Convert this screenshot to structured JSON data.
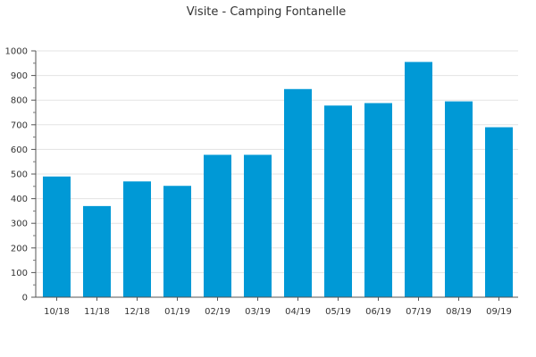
{
  "chart_data": {
    "type": "bar",
    "title": "Visite - Camping Fontanelle",
    "xlabel": "",
    "ylabel": "",
    "categories": [
      "10/18",
      "11/18",
      "12/18",
      "01/19",
      "02/19",
      "03/19",
      "04/19",
      "05/19",
      "06/19",
      "07/19",
      "08/19",
      "09/19"
    ],
    "values": [
      490,
      370,
      470,
      452,
      578,
      578,
      845,
      778,
      788,
      955,
      795,
      690
    ],
    "ylim": [
      0,
      1000
    ],
    "yticks": [
      0,
      100,
      200,
      300,
      400,
      500,
      600,
      700,
      800,
      900,
      1000
    ],
    "grid": true,
    "legend": "none",
    "bar_color": "#0099d6"
  }
}
